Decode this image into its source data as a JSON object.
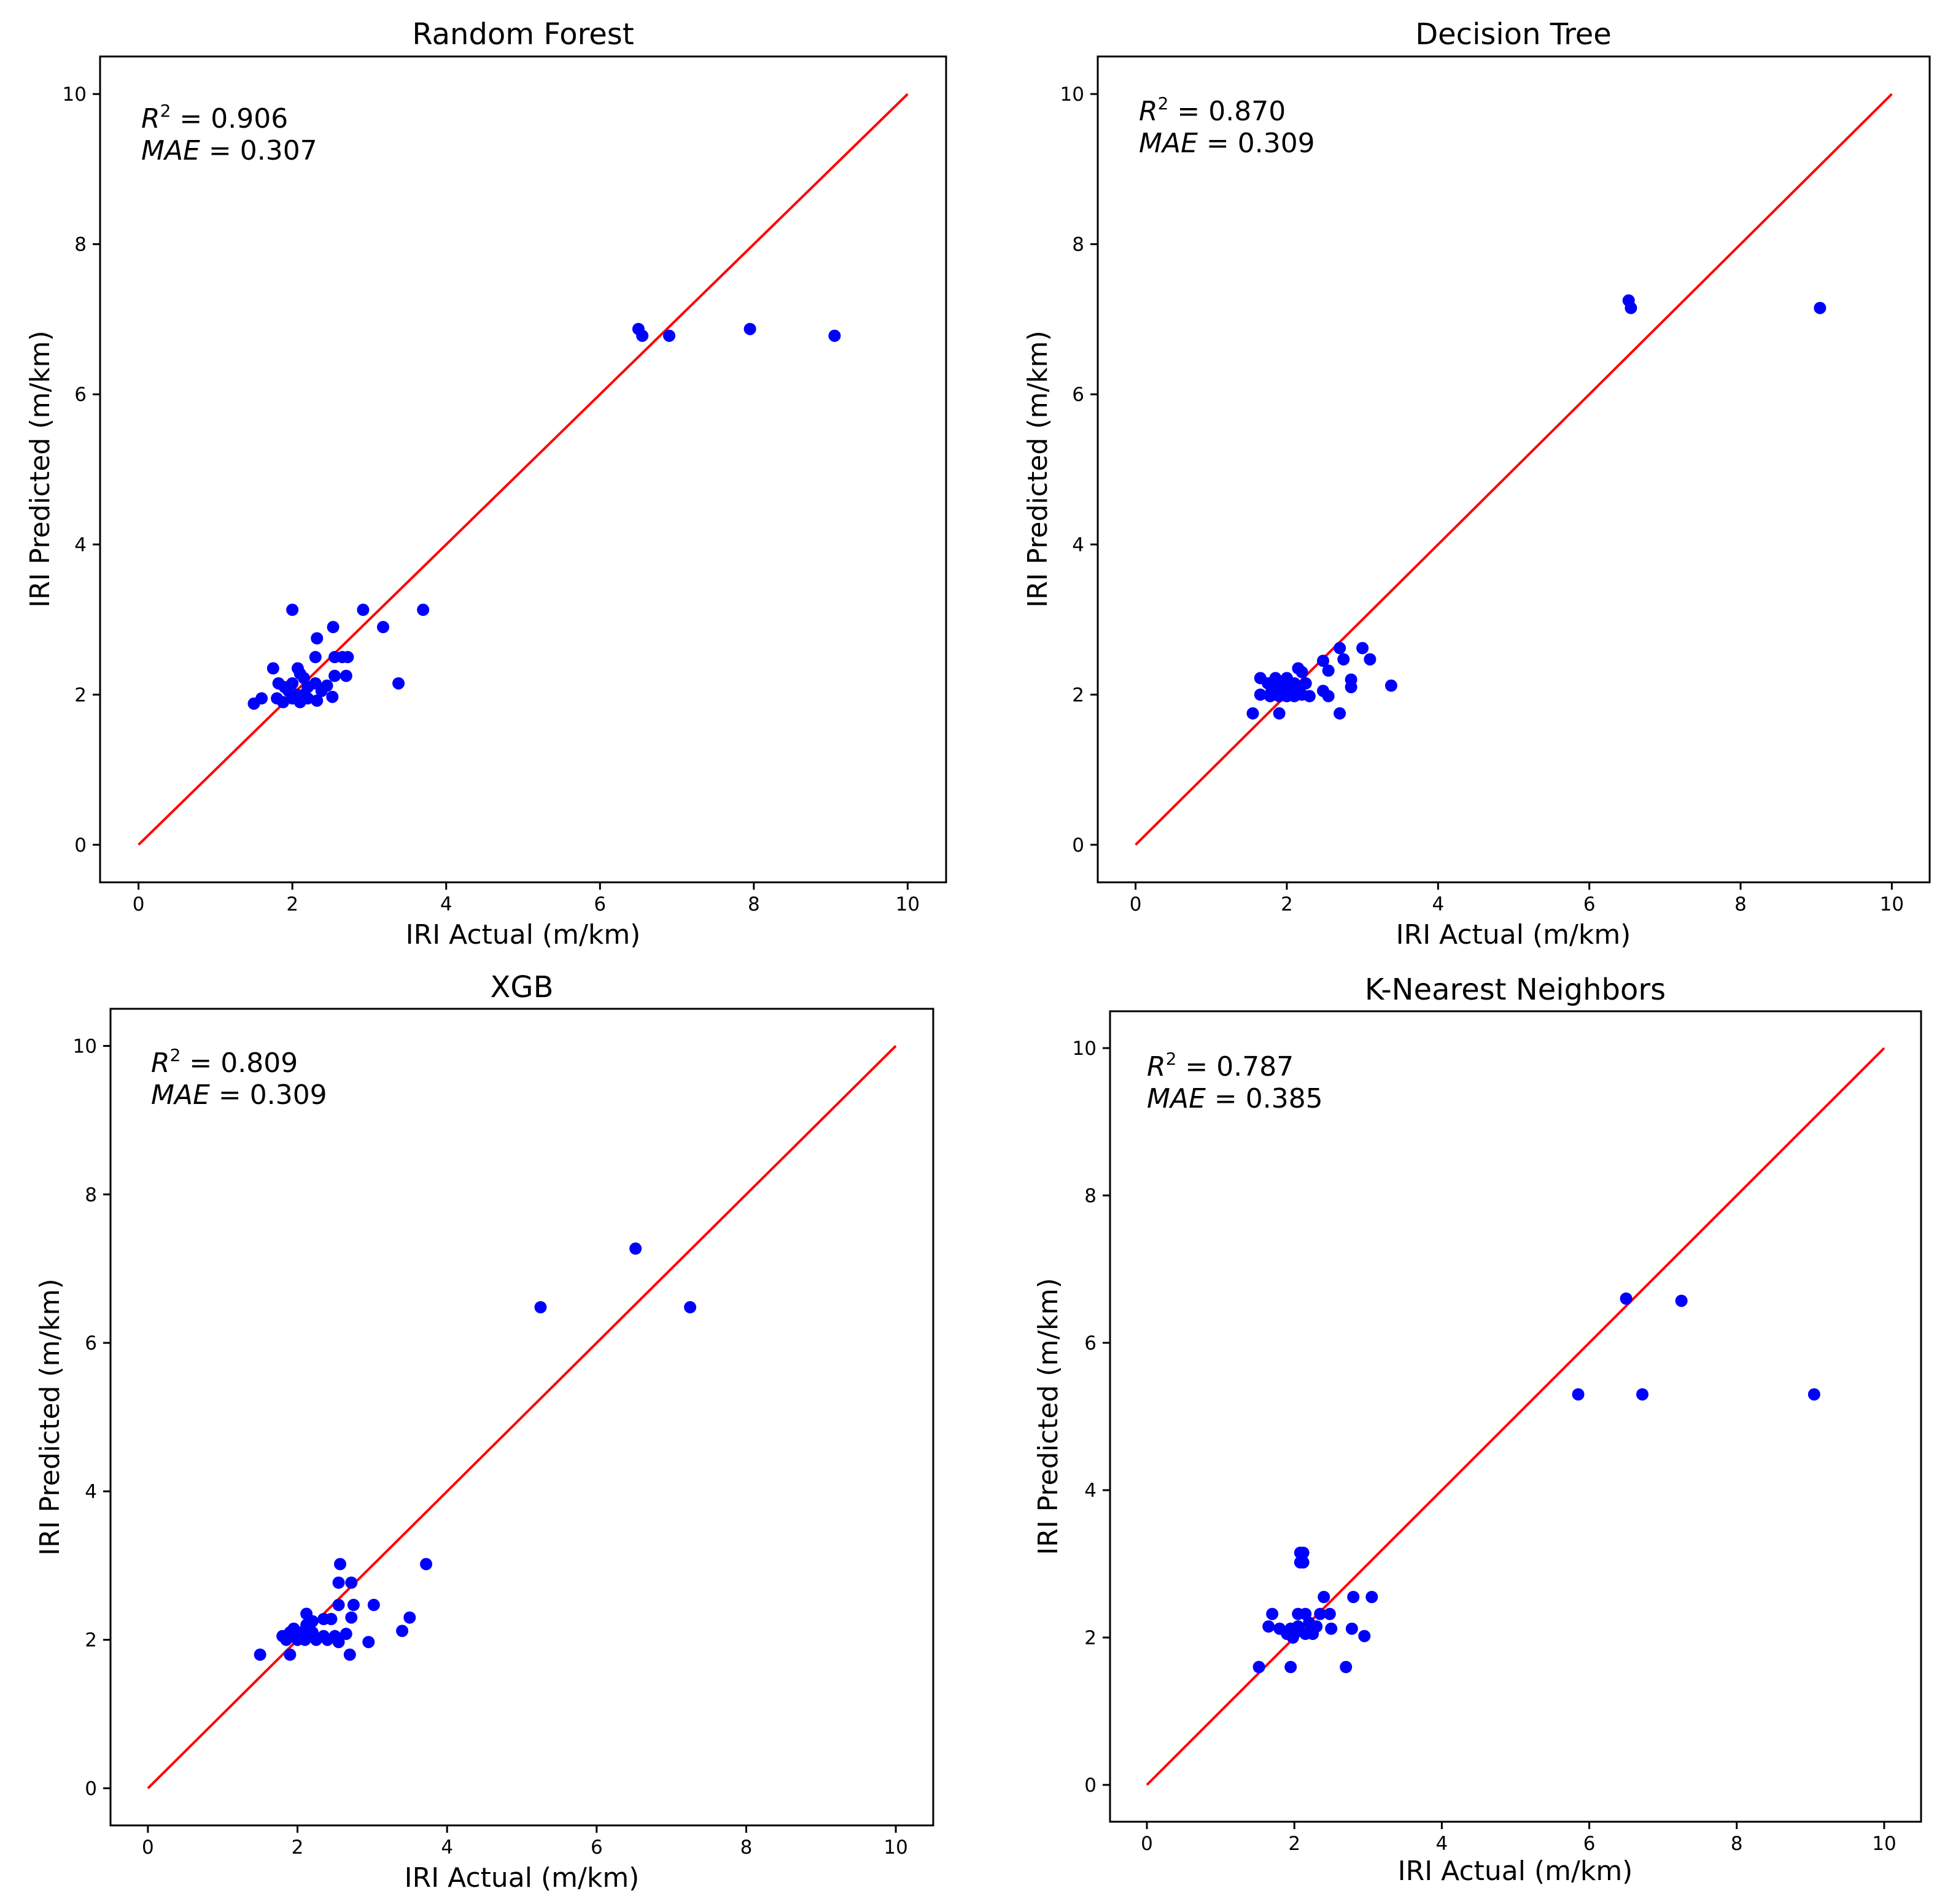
{
  "figure": {
    "panels": [
      {
        "title": "Random Forest",
        "xlabel": "IRI Actual (m/km)",
        "ylabel": "IRI Predicted (m/km)",
        "stats": {
          "r2_symbol": "R",
          "r2_sup": "2",
          "r2_value": " = 0.906",
          "mae_symbol": "MAE",
          "mae_value": " = 0.307"
        }
      },
      {
        "title": "Decision Tree",
        "xlabel": "IRI Actual (m/km)",
        "ylabel": "IRI Predicted (m/km)",
        "stats": {
          "r2_symbol": "R",
          "r2_sup": "2",
          "r2_value": " = 0.870",
          "mae_symbol": "MAE",
          "mae_value": " = 0.309"
        }
      },
      {
        "title": "XGB",
        "xlabel": "IRI Actual (m/km)",
        "ylabel": "IRI Predicted (m/km)",
        "stats": {
          "r2_symbol": "R",
          "r2_sup": "2",
          "r2_value": " = 0.809",
          "mae_symbol": "MAE",
          "mae_value": " = 0.309"
        }
      },
      {
        "title": "K-Nearest Neighbors",
        "xlabel": "IRI Actual (m/km)",
        "ylabel": "IRI Predicted (m/km)",
        "stats": {
          "r2_symbol": "R",
          "r2_sup": "2",
          "r2_value": " = 0.787",
          "mae_symbol": "MAE",
          "mae_value": " = 0.385"
        }
      }
    ]
  },
  "colors": {
    "points": "#0000ff",
    "identity_line": "#ff0000",
    "axes": "#000000"
  },
  "chart_data": [
    {
      "type": "scatter",
      "title": "Random Forest",
      "xlabel": "IRI Actual (m/km)",
      "ylabel": "IRI Predicted (m/km)",
      "xlim": [
        -0.5,
        10.5
      ],
      "ylim": [
        -0.5,
        10.5
      ],
      "xticks": [
        0,
        2,
        4,
        6,
        8,
        10
      ],
      "yticks": [
        0,
        2,
        4,
        6,
        8,
        10
      ],
      "identity_line": [
        [
          0,
          0
        ],
        [
          10,
          10
        ]
      ],
      "annotation": {
        "r2": 0.906,
        "mae": 0.307
      },
      "points": [
        [
          2.0,
          3.13
        ],
        [
          2.92,
          3.13
        ],
        [
          3.7,
          3.13
        ],
        [
          2.53,
          2.9
        ],
        [
          3.18,
          2.9
        ],
        [
          2.32,
          2.75
        ],
        [
          2.3,
          2.5
        ],
        [
          2.55,
          2.5
        ],
        [
          2.65,
          2.5
        ],
        [
          2.72,
          2.5
        ],
        [
          2.07,
          2.35
        ],
        [
          1.75,
          2.35
        ],
        [
          2.1,
          2.28
        ],
        [
          2.55,
          2.25
        ],
        [
          2.7,
          2.25
        ],
        [
          2.15,
          2.22
        ],
        [
          1.82,
          2.15
        ],
        [
          1.9,
          2.1
        ],
        [
          2.0,
          2.15
        ],
        [
          2.2,
          2.1
        ],
        [
          2.3,
          2.15
        ],
        [
          2.45,
          2.12
        ],
        [
          3.38,
          2.15
        ],
        [
          1.95,
          2.05
        ],
        [
          2.05,
          2.0
        ],
        [
          2.15,
          2.0
        ],
        [
          2.38,
          2.05
        ],
        [
          1.6,
          1.95
        ],
        [
          1.8,
          1.95
        ],
        [
          2.0,
          1.95
        ],
        [
          2.1,
          1.95
        ],
        [
          2.2,
          1.95
        ],
        [
          2.32,
          1.92
        ],
        [
          2.52,
          1.97
        ],
        [
          1.5,
          1.88
        ],
        [
          1.88,
          1.9
        ],
        [
          2.1,
          1.9
        ],
        [
          6.5,
          6.87
        ],
        [
          6.55,
          6.78
        ],
        [
          6.9,
          6.78
        ],
        [
          7.95,
          6.87
        ],
        [
          9.05,
          6.78
        ]
      ]
    },
    {
      "type": "scatter",
      "title": "Decision Tree",
      "xlabel": "IRI Actual (m/km)",
      "ylabel": "IRI Predicted (m/km)",
      "xlim": [
        -0.5,
        10.5
      ],
      "ylim": [
        -0.5,
        10.5
      ],
      "xticks": [
        0,
        2,
        4,
        6,
        8,
        10
      ],
      "yticks": [
        0,
        2,
        4,
        6,
        8,
        10
      ],
      "identity_line": [
        [
          0,
          0
        ],
        [
          10,
          10
        ]
      ],
      "annotation": {
        "r2": 0.87,
        "mae": 0.309
      },
      "points": [
        [
          2.7,
          2.62
        ],
        [
          3.0,
          2.62
        ],
        [
          2.75,
          2.47
        ],
        [
          3.1,
          2.47
        ],
        [
          2.48,
          2.45
        ],
        [
          2.15,
          2.35
        ],
        [
          2.55,
          2.32
        ],
        [
          2.2,
          2.3
        ],
        [
          1.65,
          2.22
        ],
        [
          1.85,
          2.22
        ],
        [
          2.0,
          2.22
        ],
        [
          2.85,
          2.2
        ],
        [
          1.75,
          2.15
        ],
        [
          1.95,
          2.15
        ],
        [
          2.1,
          2.15
        ],
        [
          2.25,
          2.15
        ],
        [
          1.8,
          2.05
        ],
        [
          1.9,
          2.1
        ],
        [
          2.05,
          2.05
        ],
        [
          2.15,
          2.05
        ],
        [
          2.48,
          2.05
        ],
        [
          2.85,
          2.1
        ],
        [
          3.38,
          2.12
        ],
        [
          1.65,
          2.0
        ],
        [
          1.78,
          1.98
        ],
        [
          1.9,
          1.98
        ],
        [
          2.0,
          1.98
        ],
        [
          2.1,
          1.98
        ],
        [
          2.2,
          2.0
        ],
        [
          2.3,
          1.98
        ],
        [
          2.55,
          1.98
        ],
        [
          1.55,
          1.75
        ],
        [
          1.9,
          1.75
        ],
        [
          2.7,
          1.75
        ],
        [
          6.52,
          7.25
        ],
        [
          6.55,
          7.15
        ],
        [
          9.05,
          7.15
        ]
      ]
    },
    {
      "type": "scatter",
      "title": "XGB",
      "xlabel": "IRI Actual (m/km)",
      "ylabel": "IRI Predicted (m/km)",
      "xlim": [
        -0.5,
        10.5
      ],
      "ylim": [
        -0.5,
        10.5
      ],
      "xticks": [
        0,
        2,
        4,
        6,
        8,
        10
      ],
      "yticks": [
        0,
        2,
        4,
        6,
        8,
        10
      ],
      "identity_line": [
        [
          0,
          0
        ],
        [
          10,
          10
        ]
      ],
      "annotation": {
        "r2": 0.809,
        "mae": 0.309
      },
      "points": [
        [
          2.57,
          3.02
        ],
        [
          3.72,
          3.02
        ],
        [
          2.55,
          2.77
        ],
        [
          2.72,
          2.77
        ],
        [
          2.55,
          2.47
        ],
        [
          2.75,
          2.47
        ],
        [
          3.02,
          2.47
        ],
        [
          2.12,
          2.35
        ],
        [
          2.35,
          2.28
        ],
        [
          2.45,
          2.28
        ],
        [
          2.72,
          2.3
        ],
        [
          3.5,
          2.3
        ],
        [
          1.95,
          2.15
        ],
        [
          2.12,
          2.2
        ],
        [
          2.2,
          2.25
        ],
        [
          3.4,
          2.12
        ],
        [
          1.8,
          2.05
        ],
        [
          1.9,
          2.1
        ],
        [
          2.05,
          2.1
        ],
        [
          2.2,
          2.1
        ],
        [
          2.35,
          2.05
        ],
        [
          2.5,
          2.05
        ],
        [
          2.65,
          2.08
        ],
        [
          1.85,
          2.0
        ],
        [
          2.0,
          2.0
        ],
        [
          2.1,
          2.0
        ],
        [
          2.25,
          2.0
        ],
        [
          2.4,
          2.0
        ],
        [
          2.55,
          1.97
        ],
        [
          2.95,
          1.97
        ],
        [
          1.5,
          1.8
        ],
        [
          1.9,
          1.8
        ],
        [
          2.7,
          1.8
        ],
        [
          5.25,
          6.48
        ],
        [
          6.52,
          7.27
        ],
        [
          7.25,
          6.48
        ]
      ]
    },
    {
      "type": "scatter",
      "title": "K-Nearest Neighbors",
      "xlabel": "IRI Actual (m/km)",
      "ylabel": "IRI Predicted (m/km)",
      "xlim": [
        -0.5,
        10.5
      ],
      "ylim": [
        -0.5,
        10.5
      ],
      "xticks": [
        0,
        2,
        4,
        6,
        8,
        10
      ],
      "yticks": [
        0,
        2,
        4,
        6,
        8,
        10
      ],
      "identity_line": [
        [
          0,
          0
        ],
        [
          10,
          10
        ]
      ],
      "annotation": {
        "r2": 0.787,
        "mae": 0.385
      },
      "points": [
        [
          2.08,
          3.15
        ],
        [
          2.12,
          3.15
        ],
        [
          2.08,
          3.02
        ],
        [
          2.12,
          3.02
        ],
        [
          2.4,
          2.55
        ],
        [
          2.8,
          2.55
        ],
        [
          3.05,
          2.55
        ],
        [
          1.7,
          2.32
        ],
        [
          2.05,
          2.32
        ],
        [
          2.15,
          2.32
        ],
        [
          2.35,
          2.32
        ],
        [
          2.48,
          2.32
        ],
        [
          1.65,
          2.15
        ],
        [
          1.8,
          2.12
        ],
        [
          1.95,
          2.12
        ],
        [
          2.05,
          2.15
        ],
        [
          2.2,
          2.2
        ],
        [
          2.3,
          2.15
        ],
        [
          2.5,
          2.12
        ],
        [
          2.78,
          2.12
        ],
        [
          1.9,
          2.05
        ],
        [
          2.0,
          2.05
        ],
        [
          2.15,
          2.05
        ],
        [
          2.25,
          2.05
        ],
        [
          1.98,
          2.0
        ],
        [
          2.95,
          2.02
        ],
        [
          1.52,
          1.6
        ],
        [
          1.95,
          1.6
        ],
        [
          2.7,
          1.6
        ],
        [
          5.85,
          5.3
        ],
        [
          6.5,
          6.6
        ],
        [
          6.72,
          5.3
        ],
        [
          7.25,
          6.57
        ],
        [
          9.05,
          5.3
        ]
      ]
    }
  ]
}
